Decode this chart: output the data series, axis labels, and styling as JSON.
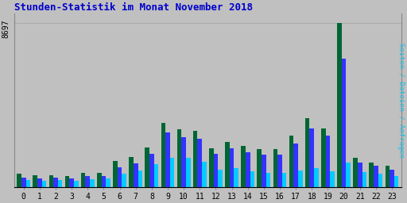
{
  "title": "Stunden-Statistik im Monat November 2018",
  "title_color": "#0000CC",
  "background_color": "#C0C0C0",
  "plot_bg_color": "#C0C0C0",
  "ylabel_right": "Seiten / Dateien / Anfragen",
  "ytick_label": "8697",
  "hours": [
    0,
    1,
    2,
    3,
    4,
    5,
    6,
    7,
    8,
    9,
    10,
    11,
    12,
    13,
    14,
    15,
    16,
    17,
    18,
    19,
    20,
    21,
    22,
    23
  ],
  "seiten": [
    680,
    620,
    630,
    580,
    720,
    760,
    1380,
    1600,
    2100,
    3400,
    3050,
    2950,
    2050,
    2400,
    2150,
    2000,
    2000,
    2700,
    3650,
    3100,
    8697,
    1550,
    1300,
    1100
  ],
  "dateien": [
    500,
    460,
    470,
    430,
    560,
    590,
    1050,
    1250,
    1750,
    2900,
    2650,
    2550,
    1750,
    2050,
    1850,
    1700,
    1700,
    2300,
    3100,
    2700,
    6800,
    1300,
    1100,
    900
  ],
  "anfragen": [
    380,
    340,
    350,
    310,
    410,
    440,
    680,
    870,
    1200,
    1550,
    1550,
    1350,
    900,
    980,
    840,
    760,
    720,
    850,
    980,
    840,
    1300,
    800,
    680,
    560
  ],
  "color_seiten": "#006633",
  "color_dateien": "#3333FF",
  "color_anfragen": "#00CCFF",
  "bar_width": 0.28,
  "ylim_max": 9200,
  "grid_color": "#AAAAAA",
  "n_gridlines": 6
}
